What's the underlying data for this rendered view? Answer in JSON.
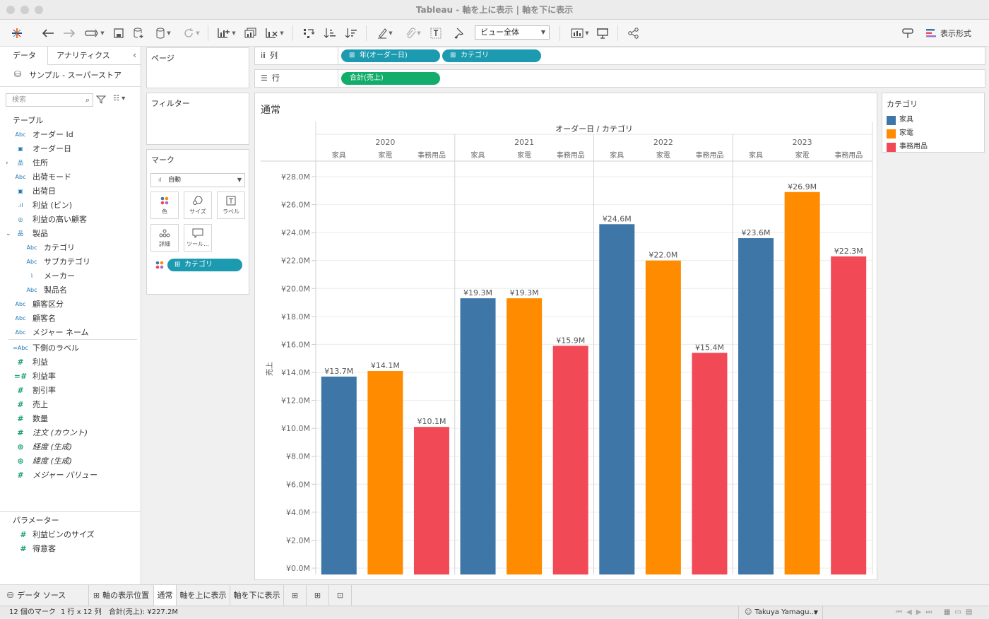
{
  "window": {
    "title": "Tableau - 軸を上に表示 | 軸を下に表示"
  },
  "toolbar": {
    "view_select": "ビュー全体",
    "format_label": "表示形式"
  },
  "left_pane": {
    "tabs": [
      "データ",
      "アナリティクス"
    ],
    "datasource": "サンプル - スーパーストア",
    "search_placeholder": "検索",
    "tables_header": "テーブル",
    "fields": [
      {
        "label": "オーダー Id",
        "type": "abc",
        "indent": 0
      },
      {
        "label": "オーダー日",
        "type": "date",
        "indent": 0
      },
      {
        "label": "住所",
        "type": "hier",
        "indent": 0
      },
      {
        "label": "出荷モード",
        "type": "abc",
        "indent": 0
      },
      {
        "label": "出荷日",
        "type": "date",
        "indent": 0
      },
      {
        "label": "利益 (ビン)",
        "type": "bin",
        "indent": 0
      },
      {
        "label": "利益の高い顧客",
        "type": "set",
        "indent": 0
      },
      {
        "label": "製品",
        "type": "hier",
        "indent": 0
      },
      {
        "label": "カテゴリ",
        "type": "abc",
        "indent": 1
      },
      {
        "label": "サブカテゴリ",
        "type": "abc",
        "indent": 1
      },
      {
        "label": "メーカー",
        "type": "clip",
        "indent": 1
      },
      {
        "label": "製品名",
        "type": "abc",
        "indent": 1
      },
      {
        "label": "顧客区分",
        "type": "abc",
        "indent": 0
      },
      {
        "label": "顧客名",
        "type": "abc",
        "indent": 0
      },
      {
        "label": "メジャー ネーム",
        "type": "abc",
        "indent": 0
      },
      {
        "label": "下側のラベル",
        "type": "calcabc",
        "indent": 0
      },
      {
        "label": "利益",
        "type": "num",
        "indent": 0
      },
      {
        "label": "利益率",
        "type": "calcnum",
        "indent": 0
      },
      {
        "label": "割引率",
        "type": "num",
        "indent": 0
      },
      {
        "label": "売上",
        "type": "num",
        "indent": 0
      },
      {
        "label": "数量",
        "type": "num",
        "indent": 0
      },
      {
        "label": "注文 (カウント)",
        "type": "num",
        "indent": 0
      },
      {
        "label": "経度 (生成)",
        "type": "geo",
        "indent": 0
      },
      {
        "label": "緯度 (生成)",
        "type": "geo",
        "indent": 0
      },
      {
        "label": "メジャー バリュー",
        "type": "num",
        "indent": 0
      }
    ],
    "parameters_header": "パラメーター",
    "parameters": [
      "利益ビンのサイズ",
      "得意客"
    ]
  },
  "cards": {
    "pages": "ページ",
    "filters": "フィルター",
    "marks": "マーク",
    "mark_type": "自動",
    "mark_buttons": [
      "色",
      "サイズ",
      "ラベル",
      "詳細",
      "ツール..."
    ],
    "color_pill": "カテゴリ"
  },
  "shelves": {
    "columns_label": "列",
    "rows_label": "行",
    "column_pills": [
      "年(オーダー日)",
      "カテゴリ"
    ],
    "row_pills": [
      "合計(売上)"
    ]
  },
  "sheet": {
    "title": "通常"
  },
  "legend": {
    "title": "カテゴリ",
    "items": [
      {
        "label": "家具",
        "color": "#3e76a8"
      },
      {
        "label": "家電",
        "color": "#ff8b00"
      },
      {
        "label": "事務用品",
        "color": "#f24957"
      }
    ]
  },
  "chart_data": {
    "type": "bar",
    "header": "オーダー日 / カテゴリ",
    "years": [
      "2020",
      "2021",
      "2022",
      "2023"
    ],
    "categories": [
      "家具",
      "家電",
      "事務用品"
    ],
    "ylabel": "売上",
    "ylim": [
      0,
      28
    ],
    "yticks": [
      "¥0.0M",
      "¥2.0M",
      "¥4.0M",
      "¥6.0M",
      "¥8.0M",
      "¥10.0M",
      "¥12.0M",
      "¥14.0M",
      "¥16.0M",
      "¥18.0M",
      "¥20.0M",
      "¥22.0M",
      "¥24.0M",
      "¥26.0M",
      "¥28.0M"
    ],
    "values": [
      [
        13.7,
        14.1,
        10.1
      ],
      [
        19.3,
        19.3,
        15.9
      ],
      [
        24.6,
        22.0,
        15.4
      ],
      [
        23.6,
        26.9,
        22.3
      ]
    ],
    "labels": [
      [
        "¥13.7M",
        "¥14.1M",
        "¥10.1M"
      ],
      [
        "¥19.3M",
        "¥19.3M",
        "¥15.9M"
      ],
      [
        "¥24.6M",
        "¥22.0M",
        "¥15.4M"
      ],
      [
        "¥23.6M",
        "¥26.9M",
        "¥22.3M"
      ]
    ],
    "colors": [
      "#3e76a8",
      "#ff8b00",
      "#f24957"
    ]
  },
  "bottom_tabs": {
    "datasource": "データ ソース",
    "sheets": [
      "軸の表示位置",
      "通常",
      "軸を上に表示",
      "軸を下に表示"
    ]
  },
  "status": {
    "marks": "12 個のマーク",
    "dims": "1 行 x 12 列",
    "sum": "合計(売上): ¥227.2M",
    "user": "Takuya Yamagu..."
  }
}
